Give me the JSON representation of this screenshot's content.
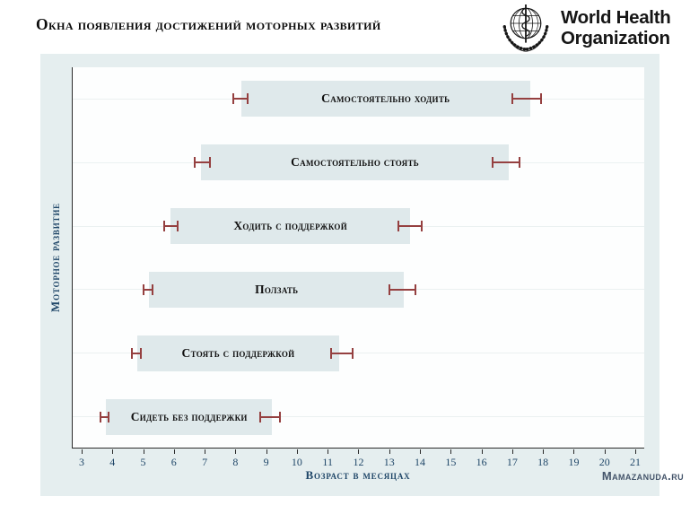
{
  "header": {
    "title": "Окна появления достижений моторных развитий",
    "logo": {
      "line1": "World Health",
      "line2": "Organization"
    }
  },
  "footer": {
    "watermark": "Mamazanuda.ru"
  },
  "chart_data": {
    "type": "bar",
    "subtype": "horizontal-range-windows-with-error-whiskers",
    "title": "Окна появления достижений моторных развитий",
    "xlabel": "Возраст в месяцах",
    "ylabel": "Моторное развитие",
    "xlim": [
      2.71,
      21.32
    ],
    "xticks": [
      3,
      4,
      5,
      6,
      7,
      8,
      9,
      10,
      11,
      12,
      13,
      14,
      15,
      16,
      17,
      18,
      19,
      20,
      21
    ],
    "grid": "faint horizontal line through each row center",
    "legend": "none",
    "milestones": [
      {
        "label": "Самостоятельно ходить",
        "window_months": [
          8.2,
          17.6
        ],
        "left_whisker": [
          7.9,
          8.45
        ],
        "right_whisker": [
          17.0,
          18.0
        ]
      },
      {
        "label": "Самостоятельно стоять",
        "window_months": [
          6.9,
          16.9
        ],
        "left_whisker": [
          6.65,
          7.2
        ],
        "right_whisker": [
          16.35,
          17.3
        ]
      },
      {
        "label": "Ходить с поддержкой",
        "window_months": [
          5.9,
          13.7
        ],
        "left_whisker": [
          5.65,
          6.15
        ],
        "right_whisker": [
          13.3,
          14.1
        ]
      },
      {
        "label": "Ползать",
        "window_months": [
          5.2,
          13.5
        ],
        "left_whisker": [
          5.0,
          5.35
        ],
        "right_whisker": [
          13.0,
          13.9
        ]
      },
      {
        "label": "Стоять с поддержкой",
        "window_months": [
          4.8,
          11.4
        ],
        "left_whisker": [
          4.6,
          4.95
        ],
        "right_whisker": [
          11.1,
          11.85
        ]
      },
      {
        "label": "Сидеть без поддержки",
        "window_months": [
          3.8,
          9.2
        ],
        "left_whisker": [
          3.6,
          3.9
        ],
        "right_whisker": [
          8.8,
          9.5
        ]
      }
    ],
    "colors": {
      "panel_background": "#e5eeef",
      "plot_background": "#fdfefe",
      "bar_fill": "#dfe9eb",
      "whisker": "#954040",
      "axis_line": "#2b2b2b",
      "gridline": "#ebf1f1",
      "axis_text": "#1f4668",
      "bar_label_text": "#101010",
      "watermark_text": "#44546a"
    }
  }
}
